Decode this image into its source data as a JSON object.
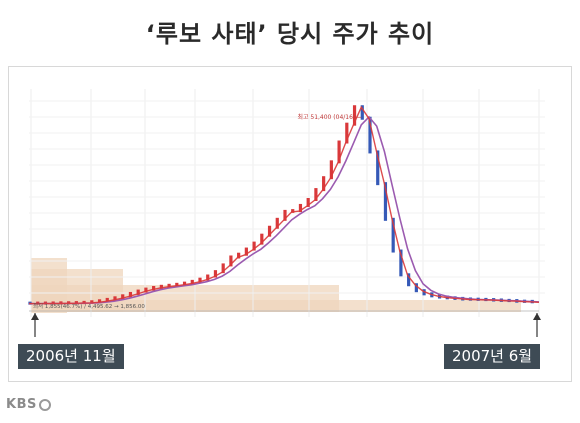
{
  "title": "‘루보 사태’ 당시 주가 추이",
  "start_label": "2006년 11월",
  "end_label": "2007년 6월",
  "logo_text": "KBS",
  "chart_data": {
    "type": "line",
    "title": "",
    "xlabel": "",
    "ylabel": "",
    "period_start": "2006년 11월",
    "period_end": "2007년 6월",
    "peak_annotation": "최고 51,400 (04/16)",
    "low_annotation": "최저 1,855(46.7%) / 4,495.62 → 1,856.00",
    "ylim": [
      0,
      56000
    ],
    "grid": true,
    "legend": "none",
    "colors": {
      "price": "#d9383a",
      "moving_average": "#9b5bb0",
      "volume": "#efd6bc"
    },
    "series": [
      {
        "values": [
          1855,
          1850,
          1865,
          1880,
          1900,
          1930,
          1950,
          1990,
          2050,
          2200,
          2450,
          2800,
          3200,
          3700,
          4300,
          4900,
          5400,
          5800,
          6100,
          6350,
          6600,
          6900,
          7350,
          7900,
          8700,
          9800,
          11500,
          13500,
          14200,
          15500,
          17000,
          19000,
          21000,
          23000,
          25000,
          25200,
          26500,
          28000,
          30500,
          33500,
          37500,
          42500,
          47000,
          51400,
          48500,
          40000,
          32000,
          23000,
          15000,
          9000,
          6500,
          5000,
          4200,
          3700,
          3400,
          3200,
          3050,
          2900,
          2850,
          2800,
          2750,
          2650,
          2550,
          2500,
          2350,
          2300,
          2200
        ]
      }
    ]
  }
}
